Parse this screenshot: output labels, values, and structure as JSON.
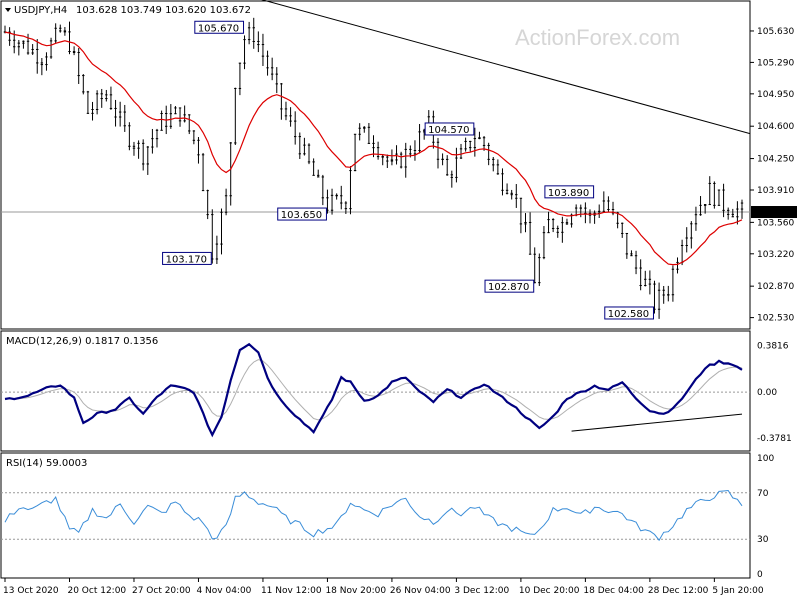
{
  "chart_data": [
    {
      "type": "candlestick",
      "symbol_header": "USDJPY,H4",
      "ohlc_header": "103.628 103.749 103.620 103.672",
      "watermark": "ActionForex.com",
      "y_ticks": [
        "105.630",
        "105.290",
        "104.950",
        "104.600",
        "104.250",
        "103.910",
        "103.560",
        "103.220",
        "102.870",
        "102.530"
      ],
      "y_tick_values": [
        105.63,
        105.29,
        104.95,
        104.6,
        104.25,
        103.91,
        103.56,
        103.22,
        102.87,
        102.53
      ],
      "ylim": [
        102.45,
        105.9
      ],
      "last_price_label": "103.672",
      "last_price": 103.672,
      "annotations": [
        {
          "text": "105.670",
          "x_index": 52,
          "value": 105.67
        },
        {
          "text": "103.170",
          "x_index": 45,
          "value": 103.17
        },
        {
          "text": "103.650",
          "x_index": 70,
          "value": 103.65
        },
        {
          "text": "104.570",
          "x_index": 102,
          "value": 104.57
        },
        {
          "text": "102.870",
          "x_index": 115,
          "value": 102.87
        },
        {
          "text": "103.890",
          "x_index": 128,
          "value": 103.89
        },
        {
          "text": "102.580",
          "x_index": 141,
          "value": 102.58
        }
      ],
      "trendline": {
        "x_index": [
          52,
          160
        ],
        "values": [
          106.02,
          104.52
        ]
      },
      "moving_average": "red",
      "colors": {
        "candles": "#000000",
        "ma": "#dd0000",
        "trendline": "#000000",
        "hline": "#999999"
      }
    },
    {
      "type": "line",
      "title": "MACD(12,26,9) 0.1817 0.1356",
      "y_ticks": [
        "0.3816",
        "0.00",
        "-0.3781"
      ],
      "y_tick_values": [
        0.3816,
        0.0,
        -0.3781
      ],
      "ylim": [
        -0.45,
        0.46
      ],
      "series": [
        {
          "color": "#000080",
          "width": 2.2
        },
        {
          "color": "#b0b0b0",
          "width": 1.0
        }
      ],
      "divergence_line": {
        "x_index": [
          123,
          160
        ],
        "values": [
          -0.32,
          -0.18
        ]
      }
    },
    {
      "type": "line",
      "title": "RSI(14) 59.0003",
      "y_ticks": [
        "100",
        "70",
        "30",
        "0"
      ],
      "y_tick_values": [
        100,
        70,
        30,
        0
      ],
      "levels": [
        70,
        30
      ],
      "ylim": [
        0,
        100
      ],
      "series": [
        {
          "color": "#3a8dd8",
          "width": 1.0
        }
      ]
    }
  ],
  "x_ticks": [
    "13 Oct 2020",
    "20 Oct 12:00",
    "27 Oct 20:00",
    "4 Nov 04:00",
    "11 Nov 12:00",
    "18 Nov 20:00",
    "26 Nov 04:00",
    "3 Dec 12:00",
    "10 Dec 20:00",
    "18 Dec 04:00",
    "28 Dec 12:00",
    "5 Jan 20:00"
  ],
  "x_tick_index": [
    0,
    14,
    28,
    42,
    56,
    70,
    84,
    98,
    112,
    126,
    140,
    154
  ],
  "n_bars": 161,
  "price_path": [
    [
      0,
      105.62
    ],
    [
      5,
      105.45
    ],
    [
      8,
      105.35
    ],
    [
      12,
      105.62
    ],
    [
      14,
      105.5
    ],
    [
      18,
      104.75
    ],
    [
      22,
      104.95
    ],
    [
      26,
      104.55
    ],
    [
      30,
      104.3
    ],
    [
      34,
      104.65
    ],
    [
      38,
      104.75
    ],
    [
      42,
      104.35
    ],
    [
      45,
      103.25
    ],
    [
      48,
      103.8
    ],
    [
      50,
      105.1
    ],
    [
      52,
      105.55
    ],
    [
      54,
      105.6
    ],
    [
      57,
      105.25
    ],
    [
      60,
      104.8
    ],
    [
      64,
      104.4
    ],
    [
      68,
      103.95
    ],
    [
      70,
      103.75
    ],
    [
      74,
      103.8
    ],
    [
      76,
      104.55
    ],
    [
      80,
      104.45
    ],
    [
      84,
      104.15
    ],
    [
      88,
      104.35
    ],
    [
      92,
      104.6
    ],
    [
      96,
      104.05
    ],
    [
      100,
      104.35
    ],
    [
      102,
      104.5
    ],
    [
      104,
      104.4
    ],
    [
      107,
      104.05
    ],
    [
      110,
      103.95
    ],
    [
      113,
      103.45
    ],
    [
      115,
      102.95
    ],
    [
      118,
      103.55
    ],
    [
      121,
      103.55
    ],
    [
      124,
      103.8
    ],
    [
      127,
      103.6
    ],
    [
      130,
      103.8
    ],
    [
      133,
      103.5
    ],
    [
      136,
      103.15
    ],
    [
      139,
      102.9
    ],
    [
      141,
      102.68
    ],
    [
      144,
      102.85
    ],
    [
      147,
      103.4
    ],
    [
      150,
      103.7
    ],
    [
      153,
      103.9
    ],
    [
      156,
      103.75
    ],
    [
      160,
      103.67
    ]
  ],
  "macd_path": [
    [
      0,
      -0.06
    ],
    [
      5,
      -0.03
    ],
    [
      9,
      0.03
    ],
    [
      12,
      0.06
    ],
    [
      15,
      -0.05
    ],
    [
      17,
      -0.25
    ],
    [
      20,
      -0.18
    ],
    [
      24,
      -0.14
    ],
    [
      27,
      -0.05
    ],
    [
      30,
      -0.18
    ],
    [
      33,
      -0.04
    ],
    [
      36,
      0.05
    ],
    [
      39,
      0.03
    ],
    [
      41,
      0.0
    ],
    [
      43,
      -0.18
    ],
    [
      45,
      -0.35
    ],
    [
      47,
      -0.2
    ],
    [
      49,
      0.1
    ],
    [
      51,
      0.35
    ],
    [
      53,
      0.4
    ],
    [
      55,
      0.33
    ],
    [
      57,
      0.12
    ],
    [
      59,
      -0.02
    ],
    [
      62,
      -0.15
    ],
    [
      65,
      -0.26
    ],
    [
      67,
      -0.32
    ],
    [
      69,
      -0.2
    ],
    [
      71,
      -0.06
    ],
    [
      73,
      0.12
    ],
    [
      75,
      0.08
    ],
    [
      78,
      -0.07
    ],
    [
      81,
      -0.03
    ],
    [
      84,
      0.08
    ],
    [
      87,
      0.12
    ],
    [
      90,
      0.0
    ],
    [
      93,
      -0.08
    ],
    [
      96,
      0.02
    ],
    [
      99,
      -0.04
    ],
    [
      102,
      0.02
    ],
    [
      104,
      0.07
    ],
    [
      107,
      -0.02
    ],
    [
      110,
      -0.1
    ],
    [
      113,
      -0.2
    ],
    [
      116,
      -0.3
    ],
    [
      119,
      -0.2
    ],
    [
      122,
      -0.05
    ],
    [
      125,
      0.0
    ],
    [
      128,
      0.05
    ],
    [
      131,
      0.02
    ],
    [
      134,
      0.08
    ],
    [
      137,
      -0.05
    ],
    [
      140,
      -0.15
    ],
    [
      143,
      -0.18
    ],
    [
      146,
      -0.1
    ],
    [
      149,
      0.05
    ],
    [
      152,
      0.2
    ],
    [
      155,
      0.25
    ],
    [
      158,
      0.23
    ],
    [
      160,
      0.18
    ]
  ],
  "rsi_path": [
    [
      0,
      45
    ],
    [
      3,
      58
    ],
    [
      6,
      55
    ],
    [
      9,
      62
    ],
    [
      11,
      65
    ],
    [
      14,
      38
    ],
    [
      16,
      35
    ],
    [
      19,
      55
    ],
    [
      22,
      48
    ],
    [
      25,
      60
    ],
    [
      28,
      45
    ],
    [
      31,
      58
    ],
    [
      34,
      52
    ],
    [
      37,
      62
    ],
    [
      40,
      50
    ],
    [
      43,
      45
    ],
    [
      45,
      30
    ],
    [
      48,
      40
    ],
    [
      50,
      65
    ],
    [
      52,
      70
    ],
    [
      55,
      62
    ],
    [
      58,
      58
    ],
    [
      61,
      48
    ],
    [
      64,
      42
    ],
    [
      67,
      35
    ],
    [
      69,
      38
    ],
    [
      72,
      42
    ],
    [
      75,
      62
    ],
    [
      78,
      55
    ],
    [
      81,
      52
    ],
    [
      84,
      60
    ],
    [
      87,
      65
    ],
    [
      90,
      50
    ],
    [
      93,
      45
    ],
    [
      96,
      55
    ],
    [
      99,
      52
    ],
    [
      102,
      58
    ],
    [
      105,
      48
    ],
    [
      108,
      42
    ],
    [
      111,
      38
    ],
    [
      114,
      32
    ],
    [
      116,
      38
    ],
    [
      119,
      55
    ],
    [
      122,
      58
    ],
    [
      125,
      50
    ],
    [
      128,
      58
    ],
    [
      131,
      55
    ],
    [
      134,
      52
    ],
    [
      137,
      42
    ],
    [
      140,
      35
    ],
    [
      142,
      32
    ],
    [
      145,
      42
    ],
    [
      148,
      55
    ],
    [
      151,
      62
    ],
    [
      154,
      68
    ],
    [
      157,
      70
    ],
    [
      160,
      59
    ]
  ]
}
